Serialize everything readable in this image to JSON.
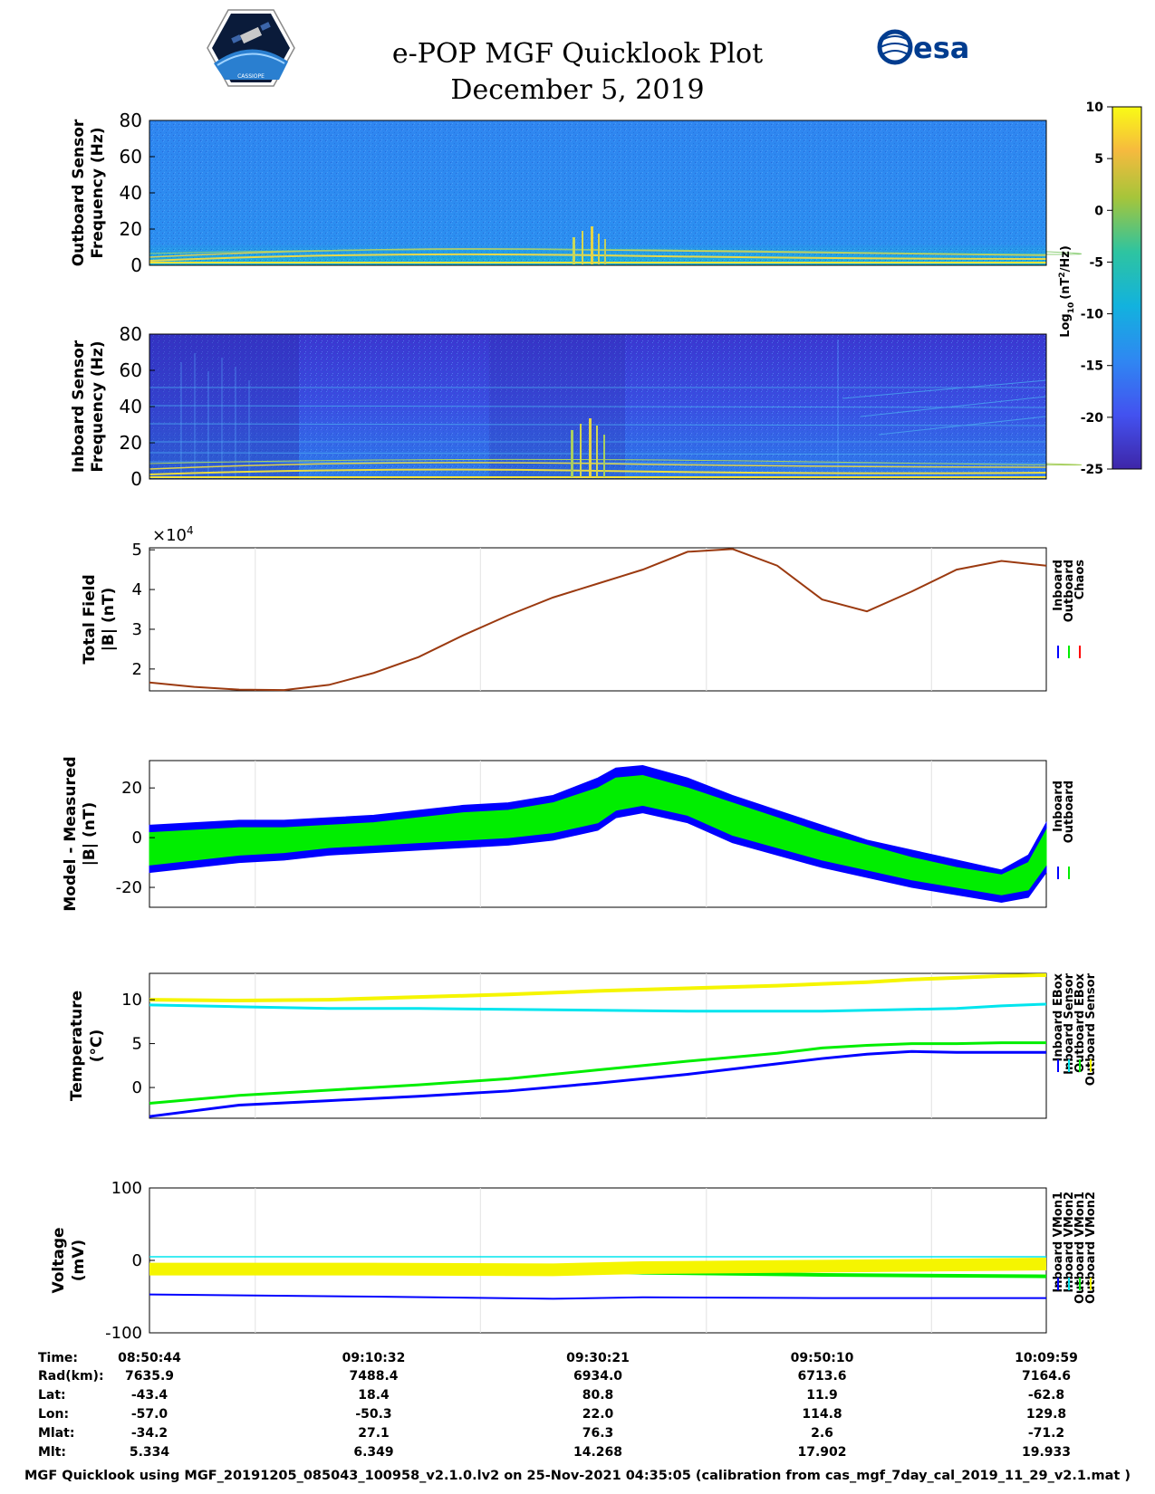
{
  "title": {
    "line1": "e-POP MGF Quicklook Plot",
    "line2": "December 5, 2019"
  },
  "logos": {
    "left": "cassiope-mission-logo",
    "right_text": "esa"
  },
  "colors": {
    "inboard": "#0000ff",
    "outboard": "#00ee00",
    "chaos": "#ff0000",
    "cyan": "#00e5ee",
    "yellow": "#f5f500",
    "spectro_bg_top": "#2f86f0",
    "spectro_bg_bottom": "#3a3ed8"
  },
  "chart_data": [
    {
      "type": "heatmap",
      "name": "outboard-spectrogram",
      "ylabel_line1": "Outboard Sensor",
      "ylabel_line2": "Frequency (Hz)",
      "ylim": [
        0,
        80
      ],
      "yticks": [
        "0",
        "20",
        "40",
        "60",
        "80"
      ],
      "colorbar": {
        "label": "Log10 (nT²/Hz)",
        "label_main": "Log",
        "label_sub": "10",
        "label_unit": "(nT",
        "label_sup": "2",
        "label_end": "/Hz)",
        "range": [
          -25,
          10
        ],
        "ticks": [
          "10",
          "5",
          "0",
          "-5",
          "-10",
          "-15",
          "-20",
          "-25"
        ]
      }
    },
    {
      "type": "heatmap",
      "name": "inboard-spectrogram",
      "ylabel_line1": "Inboard Sensor",
      "ylabel_line2": "Frequency (Hz)",
      "ylim": [
        0,
        80
      ],
      "yticks": [
        "0",
        "20",
        "40",
        "60",
        "80"
      ]
    },
    {
      "type": "line",
      "name": "total-field",
      "ylabel_line1": "Total Field",
      "ylabel_line2": "|B| (nT)",
      "ylim": [
        1.45,
        5.05
      ],
      "yticks": [
        "2",
        "3",
        "4",
        "5"
      ],
      "ytick_values": [
        2,
        3,
        4,
        5
      ],
      "exponent_label": "×10",
      "exponent_power": "4",
      "legend": [
        "Inboard",
        "Outboard",
        "Chaos"
      ],
      "x_fraction": [
        0,
        0.05,
        0.1,
        0.15,
        0.2,
        0.25,
        0.3,
        0.35,
        0.4,
        0.45,
        0.5,
        0.55,
        0.6,
        0.65,
        0.7,
        0.75,
        0.8,
        0.85,
        0.9,
        0.95,
        1.0
      ],
      "values": [
        1.66,
        1.55,
        1.48,
        1.47,
        1.6,
        1.9,
        2.3,
        2.85,
        3.35,
        3.8,
        4.15,
        4.5,
        4.95,
        5.02,
        4.6,
        3.75,
        3.45,
        3.95,
        4.5,
        4.72,
        4.6
      ]
    },
    {
      "type": "area",
      "name": "model-minus-measured",
      "ylabel_line1": "Model - Measured",
      "ylabel_line2": "|B| (nT)",
      "ylim": [
        -28,
        31
      ],
      "yticks": [
        "-20",
        "0",
        "20"
      ],
      "ytick_values": [
        -20,
        0,
        20
      ],
      "legend": [
        "Inboard",
        "Outboard"
      ],
      "x_fraction": [
        0,
        0.05,
        0.1,
        0.15,
        0.2,
        0.25,
        0.3,
        0.35,
        0.4,
        0.45,
        0.5,
        0.52,
        0.55,
        0.6,
        0.65,
        0.7,
        0.75,
        0.8,
        0.85,
        0.9,
        0.95,
        0.98,
        1.0
      ],
      "series": [
        {
          "name": "Inboard",
          "upper": [
            5,
            6,
            7,
            7,
            8,
            9,
            11,
            13,
            14,
            17,
            24,
            28,
            29,
            24,
            17,
            11,
            5,
            -1,
            -5,
            -9,
            -13,
            -7,
            6
          ],
          "lower": [
            -14,
            -12,
            -10,
            -9,
            -7,
            -6,
            -5,
            -4,
            -3,
            -1,
            3,
            8,
            10,
            6,
            -2,
            -7,
            -12,
            -16,
            -20,
            -23,
            -26,
            -24,
            -14
          ]
        },
        {
          "name": "Outboard",
          "upper": [
            2,
            3,
            4,
            4,
            5,
            6,
            8,
            10,
            11,
            14,
            20,
            24,
            25,
            20,
            14,
            8,
            2,
            -3,
            -8,
            -12,
            -15,
            -10,
            3
          ],
          "lower": [
            -11,
            -9,
            -7,
            -6,
            -4,
            -3,
            -2,
            -1,
            0,
            2,
            6,
            11,
            13,
            9,
            1,
            -4,
            -9,
            -13,
            -17,
            -20,
            -23,
            -21,
            -11
          ]
        }
      ]
    },
    {
      "type": "line",
      "name": "temperature",
      "ylabel_line1": "Temperature",
      "ylabel_line2": "(°C)",
      "ylim": [
        -3.5,
        13
      ],
      "yticks": [
        "0",
        "5",
        "10"
      ],
      "ytick_values": [
        0,
        5,
        10
      ],
      "legend": [
        "Inboard EBox",
        "Inboard Sensor",
        "Outboard EBox",
        "Outboard Sensor"
      ],
      "x_fraction": [
        0,
        0.1,
        0.2,
        0.3,
        0.4,
        0.5,
        0.6,
        0.7,
        0.75,
        0.8,
        0.85,
        0.9,
        0.95,
        1.0
      ],
      "series": [
        {
          "name": "Inboard EBox",
          "values": [
            -3.3,
            -2.0,
            -1.5,
            -1.0,
            -0.4,
            0.5,
            1.5,
            2.7,
            3.3,
            3.8,
            4.1,
            4.0,
            4.0,
            4.0
          ]
        },
        {
          "name": "Outboard EBox",
          "values": [
            -1.8,
            -0.9,
            -0.3,
            0.3,
            1.0,
            2.0,
            3.0,
            3.9,
            4.5,
            4.8,
            5.0,
            5.0,
            5.1,
            5.1
          ]
        },
        {
          "name": "Inboard Sensor",
          "values": [
            9.4,
            9.2,
            9.0,
            9.0,
            8.9,
            8.8,
            8.7,
            8.7,
            8.7,
            8.8,
            8.9,
            9.0,
            9.3,
            9.5
          ]
        },
        {
          "name": "Outboard Sensor",
          "values": [
            10.0,
            9.9,
            10.0,
            10.3,
            10.6,
            11.0,
            11.3,
            11.6,
            11.8,
            12.0,
            12.3,
            12.5,
            12.7,
            12.8
          ]
        }
      ]
    },
    {
      "type": "line",
      "name": "voltage",
      "ylabel_line1": "Voltage",
      "ylabel_line2": "(mV)",
      "ylim": [
        -100,
        100
      ],
      "yticks": [
        "-100",
        "0",
        "100"
      ],
      "ytick_values": [
        -100,
        0,
        100
      ],
      "legend": [
        "Inboard VMon1",
        "Inboard VMon2",
        "Outboard VMon1",
        "Outboard VMon2"
      ],
      "x_fraction": [
        0,
        0.25,
        0.45,
        0.55,
        0.75,
        1.0
      ],
      "series": [
        {
          "name": "Inboard VMon1",
          "values": [
            -47,
            -50,
            -53,
            -51,
            -52,
            -52
          ]
        },
        {
          "name": "Inboard VMon2",
          "values": [
            5,
            5,
            5,
            5,
            5,
            5
          ]
        },
        {
          "name": "Outboard VMon1",
          "values": [
            -8,
            -12,
            -14,
            -17,
            -20,
            -22
          ]
        },
        {
          "name": "Outboard VMon2",
          "values": [
            -12,
            -12,
            -13,
            -10,
            -8,
            -5
          ]
        }
      ]
    }
  ],
  "xaxis": {
    "labels": [
      "Time:",
      "Rad(km):",
      "Lat:",
      "Lon:",
      "Mlat:",
      "Mlt:"
    ],
    "columns": [
      [
        "08:50:44",
        "7635.9",
        "-43.4",
        "-57.0",
        "-34.2",
        "5.334"
      ],
      [
        "09:10:32",
        "7488.4",
        "18.4",
        "-50.3",
        "27.1",
        "6.349"
      ],
      [
        "09:30:21",
        "6934.0",
        "80.8",
        "22.0",
        "76.3",
        "14.268"
      ],
      [
        "09:50:10",
        "6713.6",
        "11.9",
        "114.8",
        "2.6",
        "17.902"
      ],
      [
        "10:09:59",
        "7164.6",
        "-62.8",
        "129.8",
        "-71.2",
        "19.933"
      ]
    ]
  },
  "footer": "MGF Quicklook using MGF_20191205_085043_100958_v2.1.0.lv2 on 25-Nov-2021 04:35:05 (calibration from cas_mgf_7day_cal_2019_11_29_v2.1.mat )"
}
